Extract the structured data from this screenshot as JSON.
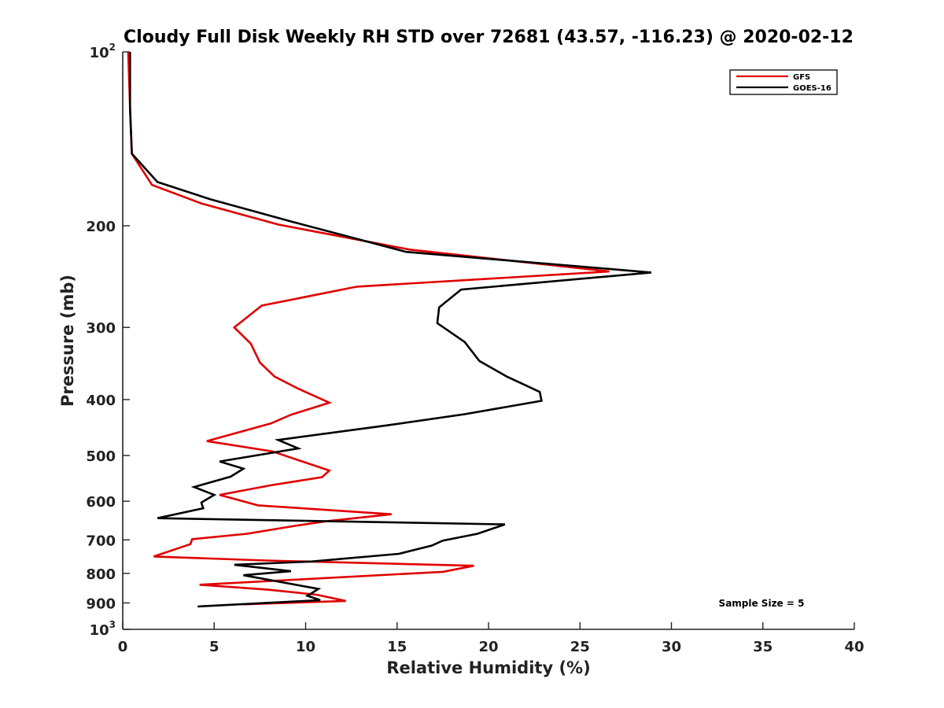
{
  "chart_data": {
    "type": "line",
    "title": "Cloudy Full Disk Weekly RH STD over 72681 (43.57, -116.23) @ 2020-02-12",
    "xlabel": "Relative Humidity (%)",
    "ylabel": "Pressure (mb)",
    "xlim": [
      0,
      40
    ],
    "ylim": [
      100,
      1000
    ],
    "y_scale": "log",
    "y_reversed": true,
    "x_ticks": [
      0,
      5,
      10,
      15,
      20,
      25,
      30,
      35,
      40
    ],
    "y_ticks": [
      {
        "value": 100,
        "base": "10",
        "sup": "2"
      },
      {
        "value": 200,
        "label": "200"
      },
      {
        "value": 300,
        "label": "300"
      },
      {
        "value": 400,
        "label": "400"
      },
      {
        "value": 500,
        "label": "500"
      },
      {
        "value": 600,
        "label": "600"
      },
      {
        "value": 700,
        "label": "700"
      },
      {
        "value": 800,
        "label": "800"
      },
      {
        "value": 900,
        "label": "900"
      },
      {
        "value": 1000,
        "base": "10",
        "sup": "3"
      }
    ],
    "grid": false,
    "legend_position": "top-right",
    "annotation": "Sample Size = 5",
    "series": [
      {
        "name": "GFS",
        "color": "#e00000",
        "points": [
          [
            0.3,
            100
          ],
          [
            0.4,
            125
          ],
          [
            0.5,
            150
          ],
          [
            1.6,
            170
          ],
          [
            4.3,
            183
          ],
          [
            8.5,
            199
          ],
          [
            15.7,
            220
          ],
          [
            26.6,
            240
          ],
          [
            12.8,
            255
          ],
          [
            7.6,
            275
          ],
          [
            6.1,
            300
          ],
          [
            7.0,
            320
          ],
          [
            7.5,
            345
          ],
          [
            8.3,
            365
          ],
          [
            9.6,
            383
          ],
          [
            11.3,
            405
          ],
          [
            9.2,
            425
          ],
          [
            8.1,
            440
          ],
          [
            4.6,
            472
          ],
          [
            8.2,
            492
          ],
          [
            11.3,
            531
          ],
          [
            10.9,
            545
          ],
          [
            8.1,
            563
          ],
          [
            5.3,
            585
          ],
          [
            7.4,
            610
          ],
          [
            14.7,
            632
          ],
          [
            11.1,
            650
          ],
          [
            9.4,
            662
          ],
          [
            6.8,
            683
          ],
          [
            3.8,
            698
          ],
          [
            3.7,
            712
          ],
          [
            1.7,
            748
          ],
          [
            7.8,
            760
          ],
          [
            19.2,
            776
          ],
          [
            17.5,
            795
          ],
          [
            4.2,
            837
          ],
          [
            8.0,
            854
          ],
          [
            10.6,
            871
          ],
          [
            12.2,
            893
          ],
          [
            6.6,
            905
          ]
        ]
      },
      {
        "name": "GOES-16",
        "color": "#000000",
        "points": [
          [
            0.4,
            100
          ],
          [
            0.4,
            125
          ],
          [
            0.5,
            150
          ],
          [
            1.9,
            168
          ],
          [
            4.8,
            180
          ],
          [
            9.3,
            197
          ],
          [
            15.5,
            222
          ],
          [
            28.9,
            241
          ],
          [
            18.5,
            258
          ],
          [
            17.3,
            277
          ],
          [
            17.2,
            295
          ],
          [
            18.7,
            318
          ],
          [
            19.5,
            343
          ],
          [
            21.0,
            365
          ],
          [
            22.8,
            388
          ],
          [
            22.9,
            402
          ],
          [
            18.7,
            424
          ],
          [
            14.3,
            444
          ],
          [
            8.5,
            470
          ],
          [
            9.6,
            486
          ],
          [
            5.3,
            512
          ],
          [
            6.6,
            527
          ],
          [
            5.9,
            544
          ],
          [
            3.9,
            567
          ],
          [
            5.0,
            585
          ],
          [
            4.3,
            603
          ],
          [
            4.4,
            617
          ],
          [
            1.9,
            642
          ],
          [
            20.9,
            658
          ],
          [
            19.4,
            683
          ],
          [
            17.5,
            702
          ],
          [
            16.9,
            716
          ],
          [
            15.1,
            740
          ],
          [
            10.3,
            763
          ],
          [
            6.1,
            773
          ],
          [
            9.2,
            793
          ],
          [
            6.6,
            806
          ],
          [
            10.7,
            851
          ],
          [
            10.1,
            875
          ],
          [
            10.8,
            890
          ],
          [
            4.1,
            913
          ]
        ]
      }
    ]
  }
}
